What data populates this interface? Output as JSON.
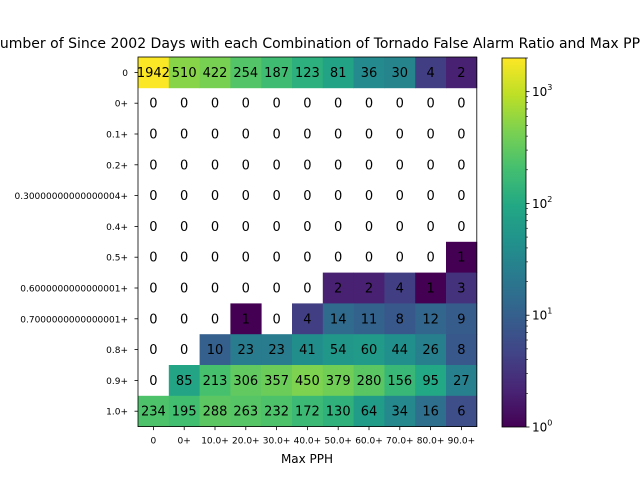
{
  "chart_data": {
    "type": "heatmap",
    "title": "Number of Since 2002 Days with each Combination of Tornado False Alarm Ratio and Max PPH",
    "xlabel": "Max PPH",
    "ylabel": "",
    "x_categories": [
      "0",
      "0+",
      "10.0+",
      "20.0+",
      "30.0+",
      "40.0+",
      "50.0+",
      "60.0+",
      "70.0+",
      "80.0+",
      "90.0+"
    ],
    "y_categories": [
      "0",
      "0+",
      "0.1+",
      "0.2+",
      "0.30000000000000004+",
      "0.4+",
      "0.5+",
      "0.6000000000000001+",
      "0.7000000000000001+",
      "0.8+",
      "0.9+",
      "1.0+"
    ],
    "values": [
      [
        1942,
        510,
        422,
        254,
        187,
        123,
        81,
        36,
        30,
        4,
        2
      ],
      [
        0,
        0,
        0,
        0,
        0,
        0,
        0,
        0,
        0,
        0,
        0
      ],
      [
        0,
        0,
        0,
        0,
        0,
        0,
        0,
        0,
        0,
        0,
        0
      ],
      [
        0,
        0,
        0,
        0,
        0,
        0,
        0,
        0,
        0,
        0,
        0
      ],
      [
        0,
        0,
        0,
        0,
        0,
        0,
        0,
        0,
        0,
        0,
        0
      ],
      [
        0,
        0,
        0,
        0,
        0,
        0,
        0,
        0,
        0,
        0,
        0
      ],
      [
        0,
        0,
        0,
        0,
        0,
        0,
        0,
        0,
        0,
        0,
        1
      ],
      [
        0,
        0,
        0,
        0,
        0,
        0,
        2,
        2,
        4,
        1,
        3
      ],
      [
        0,
        0,
        0,
        1,
        0,
        4,
        14,
        11,
        8,
        12,
        9
      ],
      [
        0,
        0,
        10,
        23,
        23,
        41,
        54,
        60,
        44,
        26,
        8
      ],
      [
        0,
        85,
        213,
        306,
        357,
        450,
        379,
        280,
        156,
        95,
        27
      ],
      [
        234,
        195,
        288,
        263,
        232,
        172,
        130,
        64,
        34,
        16,
        6
      ]
    ],
    "color_scale": "log",
    "colormap": "viridis",
    "colorbar": {
      "range": [
        1,
        2000
      ],
      "ticks": [
        1,
        10,
        100,
        1000
      ],
      "tick_labels": [
        "10^0",
        "10^1",
        "10^2",
        "10^3"
      ]
    },
    "zero_color": "#ffffff",
    "grid": false
  }
}
